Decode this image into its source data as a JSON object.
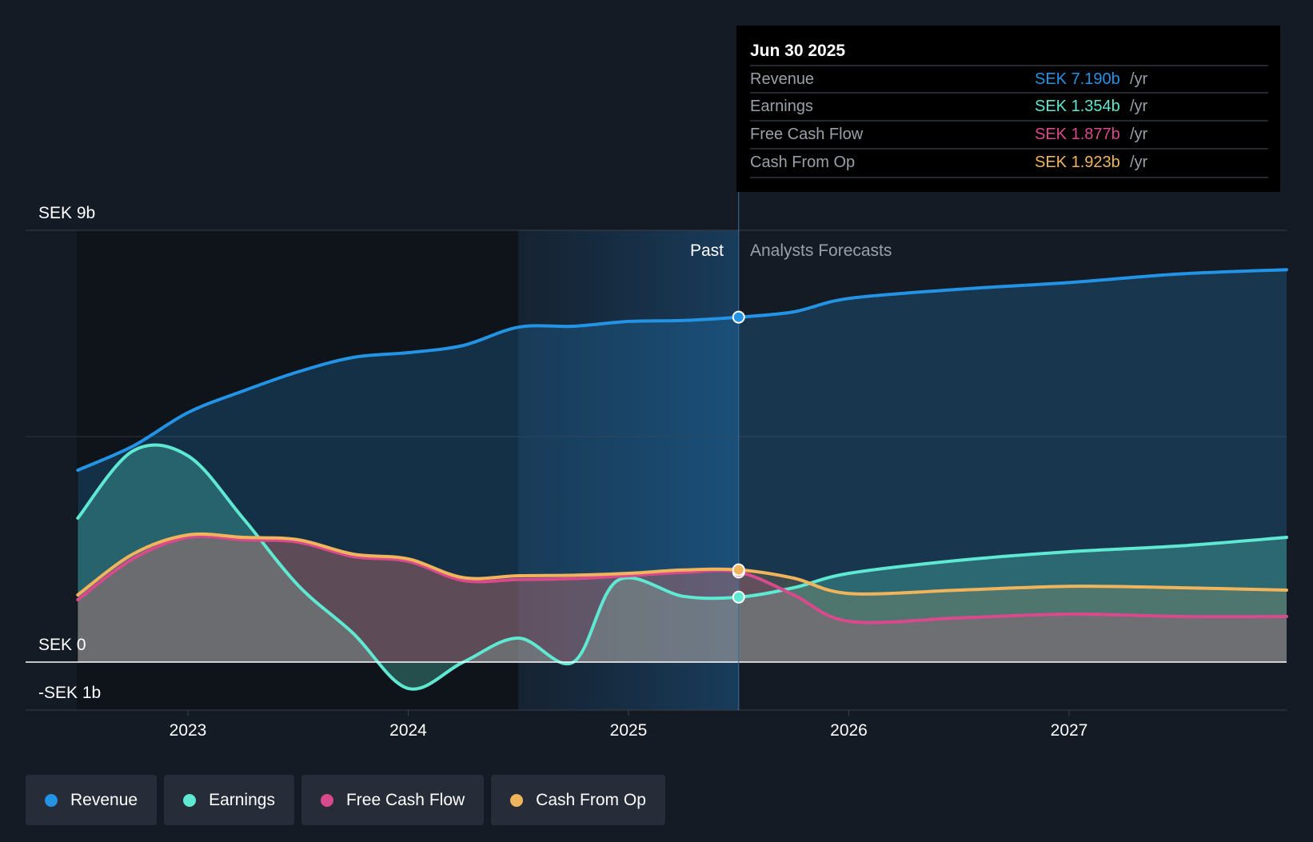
{
  "tooltip": {
    "date": "Jun 30 2025",
    "rows": [
      {
        "label": "Revenue",
        "value": "SEK 7.190b",
        "unit": "/yr",
        "color": "#2394e5"
      },
      {
        "label": "Earnings",
        "value": "SEK 1.354b",
        "unit": "/yr",
        "color": "#5fe8d2"
      },
      {
        "label": "Free Cash Flow",
        "value": "SEK 1.877b",
        "unit": "/yr",
        "color": "#d94a8c"
      },
      {
        "label": "Cash From Op",
        "value": "SEK 1.923b",
        "unit": "/yr",
        "color": "#f0b45c"
      }
    ]
  },
  "region_labels": {
    "past": "Past",
    "forecast": "Analysts Forecasts"
  },
  "legend": [
    {
      "label": "Revenue",
      "color": "#2394e5"
    },
    {
      "label": "Earnings",
      "color": "#5fe8d2"
    },
    {
      "label": "Free Cash Flow",
      "color": "#d94a8c"
    },
    {
      "label": "Cash From Op",
      "color": "#f0b45c"
    }
  ],
  "chart_data": {
    "type": "area",
    "title": "",
    "xlabel": "",
    "ylabel": "",
    "ylim": [
      -1,
      9
    ],
    "xlim": [
      2022.5,
      2027.99
    ],
    "y_tick_labels": [
      {
        "value": 9,
        "label": "SEK 9b"
      },
      {
        "value": 0,
        "label": "SEK 0"
      },
      {
        "value": -1,
        "label": "-SEK 1b"
      }
    ],
    "x_ticks": [
      {
        "value": 2023,
        "label": "2023"
      },
      {
        "value": 2024,
        "label": "2024"
      },
      {
        "value": 2025,
        "label": "2025"
      },
      {
        "value": 2026,
        "label": "2026"
      },
      {
        "value": 2027,
        "label": "2027"
      }
    ],
    "past_region_start": 2024.5,
    "forecast_start": 2025.5,
    "series": [
      {
        "name": "Revenue",
        "color": "#2394e5",
        "points": [
          [
            2022.5,
            4.0
          ],
          [
            2022.75,
            4.5
          ],
          [
            2023.0,
            5.2
          ],
          [
            2023.25,
            5.65
          ],
          [
            2023.5,
            6.05
          ],
          [
            2023.75,
            6.35
          ],
          [
            2024.0,
            6.45
          ],
          [
            2024.25,
            6.6
          ],
          [
            2024.5,
            6.98
          ],
          [
            2024.75,
            7.0
          ],
          [
            2025.0,
            7.1
          ],
          [
            2025.25,
            7.12
          ],
          [
            2025.5,
            7.19
          ],
          [
            2025.75,
            7.3
          ],
          [
            2026.0,
            7.58
          ],
          [
            2026.5,
            7.77
          ],
          [
            2027.0,
            7.91
          ],
          [
            2027.5,
            8.09
          ],
          [
            2027.99,
            8.18
          ]
        ]
      },
      {
        "name": "Earnings",
        "color": "#5fe8d2",
        "points": [
          [
            2022.5,
            3.0
          ],
          [
            2022.75,
            4.4
          ],
          [
            2023.0,
            4.3
          ],
          [
            2023.25,
            3.0
          ],
          [
            2023.5,
            1.6
          ],
          [
            2023.75,
            0.6
          ],
          [
            2024.0,
            -0.55
          ],
          [
            2024.25,
            0.0
          ],
          [
            2024.5,
            0.5
          ],
          [
            2024.75,
            0.0
          ],
          [
            2024.95,
            1.7
          ],
          [
            2025.25,
            1.37
          ],
          [
            2025.5,
            1.354
          ],
          [
            2025.75,
            1.55
          ],
          [
            2026.0,
            1.85
          ],
          [
            2026.5,
            2.12
          ],
          [
            2027.0,
            2.3
          ],
          [
            2027.5,
            2.42
          ],
          [
            2027.99,
            2.6
          ]
        ]
      },
      {
        "name": "Free Cash Flow",
        "color": "#d94a8c",
        "points": [
          [
            2022.5,
            1.3
          ],
          [
            2022.75,
            2.15
          ],
          [
            2023.0,
            2.6
          ],
          [
            2023.25,
            2.55
          ],
          [
            2023.5,
            2.5
          ],
          [
            2023.75,
            2.2
          ],
          [
            2024.0,
            2.1
          ],
          [
            2024.25,
            1.7
          ],
          [
            2024.5,
            1.72
          ],
          [
            2024.75,
            1.74
          ],
          [
            2025.0,
            1.8
          ],
          [
            2025.25,
            1.87
          ],
          [
            2025.5,
            1.877
          ],
          [
            2025.75,
            1.4
          ],
          [
            2026.0,
            0.85
          ],
          [
            2026.5,
            0.92
          ],
          [
            2027.0,
            1.0
          ],
          [
            2027.5,
            0.95
          ],
          [
            2027.99,
            0.95
          ]
        ]
      },
      {
        "name": "Cash From Op",
        "color": "#f0b45c",
        "points": [
          [
            2022.5,
            1.4
          ],
          [
            2022.75,
            2.25
          ],
          [
            2023.0,
            2.65
          ],
          [
            2023.25,
            2.6
          ],
          [
            2023.5,
            2.55
          ],
          [
            2023.75,
            2.25
          ],
          [
            2024.0,
            2.15
          ],
          [
            2024.25,
            1.76
          ],
          [
            2024.5,
            1.8
          ],
          [
            2024.75,
            1.81
          ],
          [
            2025.0,
            1.85
          ],
          [
            2025.25,
            1.92
          ],
          [
            2025.5,
            1.923
          ],
          [
            2025.75,
            1.75
          ],
          [
            2026.0,
            1.43
          ],
          [
            2026.5,
            1.5
          ],
          [
            2027.0,
            1.58
          ],
          [
            2027.5,
            1.55
          ],
          [
            2027.99,
            1.5
          ]
        ]
      }
    ]
  }
}
